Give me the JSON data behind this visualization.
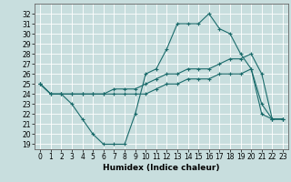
{
  "title": "",
  "xlabel": "Humidex (Indice chaleur)",
  "ylabel": "",
  "bg_color": "#c8dede",
  "line_color": "#1a6b6b",
  "grid_color": "#ffffff",
  "xlim": [
    -0.5,
    23.5
  ],
  "ylim": [
    18.5,
    33.0
  ],
  "yticks": [
    19,
    20,
    21,
    22,
    23,
    24,
    25,
    26,
    27,
    28,
    29,
    30,
    31,
    32
  ],
  "xticks": [
    0,
    1,
    2,
    3,
    4,
    5,
    6,
    7,
    8,
    9,
    10,
    11,
    12,
    13,
    14,
    15,
    16,
    17,
    18,
    19,
    20,
    21,
    22,
    23
  ],
  "line1_x": [
    0,
    1,
    2,
    3,
    4,
    5,
    6,
    7,
    8,
    9,
    10,
    11,
    12,
    13,
    14,
    15,
    16,
    17,
    18,
    19,
    20,
    21,
    22,
    23
  ],
  "line1_y": [
    25.0,
    24.0,
    24.0,
    23.0,
    21.5,
    20.0,
    19.0,
    19.0,
    19.0,
    22.0,
    26.0,
    26.5,
    28.5,
    31.0,
    31.0,
    31.0,
    32.0,
    30.5,
    30.0,
    28.0,
    26.5,
    23.0,
    21.5,
    21.5
  ],
  "line2_x": [
    0,
    1,
    2,
    3,
    4,
    5,
    6,
    7,
    8,
    9,
    10,
    11,
    12,
    13,
    14,
    15,
    16,
    17,
    18,
    19,
    20,
    21,
    22,
    23
  ],
  "line2_y": [
    25.0,
    24.0,
    24.0,
    24.0,
    24.0,
    24.0,
    24.0,
    24.5,
    24.5,
    24.5,
    25.0,
    25.5,
    26.0,
    26.0,
    26.5,
    26.5,
    26.5,
    27.0,
    27.5,
    27.5,
    28.0,
    26.0,
    21.5,
    21.5
  ],
  "line3_x": [
    0,
    1,
    2,
    3,
    4,
    5,
    6,
    7,
    8,
    9,
    10,
    11,
    12,
    13,
    14,
    15,
    16,
    17,
    18,
    19,
    20,
    21,
    22,
    23
  ],
  "line3_y": [
    25.0,
    24.0,
    24.0,
    24.0,
    24.0,
    24.0,
    24.0,
    24.0,
    24.0,
    24.0,
    24.0,
    24.5,
    25.0,
    25.0,
    25.5,
    25.5,
    25.5,
    26.0,
    26.0,
    26.0,
    26.5,
    22.0,
    21.5,
    21.5
  ],
  "tick_fontsize": 5.5,
  "xlabel_fontsize": 6.5
}
